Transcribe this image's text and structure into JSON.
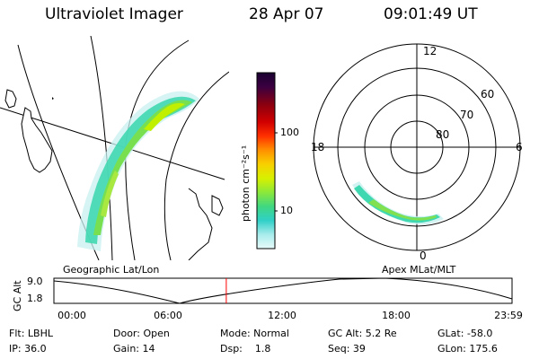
{
  "header": {
    "title": "Ultraviolet Imager",
    "date": "28 Apr 07",
    "time": "09:01:49 UT"
  },
  "geo_panel": {
    "label": "Geographic Lat/Lon"
  },
  "polar_panel": {
    "label": "Apex MLat/MLT",
    "mlt_labels": [
      "12",
      "18",
      "6",
      "0"
    ],
    "lat_labels": [
      "60",
      "70",
      "80"
    ]
  },
  "colorbar": {
    "unit_label": "photon cm⁻²s⁻¹",
    "tick_labels": [
      "100",
      "10"
    ],
    "scale": "log",
    "colors": [
      "#1a0030",
      "#3a0040",
      "#6a0020",
      "#9a0000",
      "#d10000",
      "#ff6000",
      "#ffb000",
      "#e8e800",
      "#b4f000",
      "#70e050",
      "#30d0a0",
      "#60e0e0",
      "#a0f0f0",
      "#d8f8f8"
    ]
  },
  "altitude_plot": {
    "ylabel": "GC Alt",
    "ytick_labels": [
      "9.0",
      "1.8"
    ],
    "x_tick_labels": [
      "00:00",
      "06:00",
      "12:00",
      "18:00",
      "23:59"
    ],
    "current_time_hours": 9.03,
    "current_marker_color": "#ff0000"
  },
  "info": {
    "flt": "Flt: LBHL",
    "ip": "IP: 36.0",
    "door": "Door: Open",
    "gain": "Gain: 14",
    "mode": "Mode: Normal",
    "dsp": "Dsp:    1.8",
    "gcalt": "GC Alt: 5.2 Re",
    "seq": "Seq: 39",
    "glat": "GLat: -58.0",
    "glon": "GLon: 175.6"
  }
}
